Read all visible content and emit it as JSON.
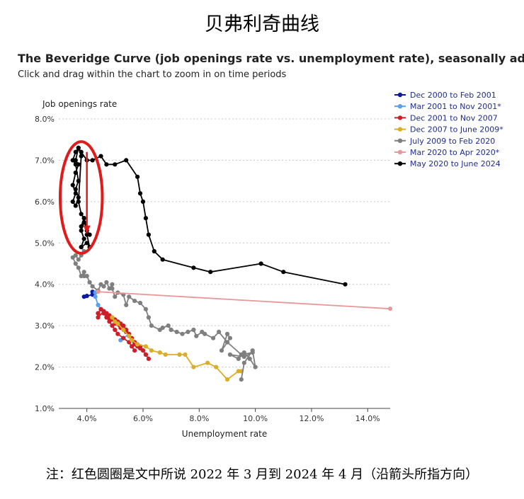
{
  "doc_title": "贝弗利奇曲线",
  "footnote": "注：红色圆圈是文中所说 2022 年 3 月到 2024 年 4 月（沿箭头所指方向）",
  "chart_data": {
    "type": "line",
    "title": "The Beveridge Curve (job openings rate vs. unemployment rate), seasonally adjusted",
    "subtitle": "Click and drag within the chart to zoom in on time periods",
    "xlabel": "Unemployment rate",
    "ylabel": "Job openings rate",
    "xlim": [
      3.0,
      14.8
    ],
    "ylim": [
      1.0,
      8.0
    ],
    "x_ticks": [
      "4.0%",
      "6.0%",
      "8.0%",
      "10.0%",
      "12.0%",
      "14.0%"
    ],
    "x_tick_values": [
      4,
      6,
      8,
      10,
      12,
      14
    ],
    "y_ticks": [
      "1.0%",
      "2.0%",
      "3.0%",
      "4.0%",
      "5.0%",
      "6.0%",
      "7.0%",
      "8.0%"
    ],
    "y_tick_values": [
      1,
      2,
      3,
      4,
      5,
      6,
      7,
      8
    ],
    "grid": "horizontal dotted",
    "legend_position": "top-right",
    "series": [
      {
        "name": "Dec 2000 to Feb 2001",
        "color": "#0a1a9a",
        "x": [
          3.9,
          4.0,
          4.2,
          4.2
        ],
        "y": [
          3.7,
          3.72,
          3.75,
          3.82
        ]
      },
      {
        "name": "Mar 2001 to Nov 2001*",
        "color": "#5aa0e8",
        "x": [
          4.3,
          4.3,
          4.4,
          4.5,
          4.6,
          4.8,
          5.0,
          5.3,
          5.4,
          5.5,
          5.3,
          5.2
        ],
        "y": [
          3.8,
          3.7,
          3.5,
          3.4,
          3.3,
          3.2,
          3.1,
          3.0,
          2.85,
          2.8,
          2.7,
          2.65
        ]
      },
      {
        "name": "Dec 2001 to Nov 2007",
        "color": "#cc1f2a",
        "x": [
          5.7,
          5.6,
          5.5,
          5.3,
          5.1,
          5.0,
          4.9,
          4.8,
          4.7,
          4.6,
          4.5,
          4.4,
          4.4,
          4.6,
          4.7,
          4.8,
          4.9,
          5.0,
          5.2,
          5.4,
          5.5,
          5.6,
          5.7,
          5.8,
          5.9,
          6.0,
          6.1,
          6.2,
          6.1,
          6.0,
          5.9,
          5.8,
          5.7,
          5.6,
          5.5,
          5.4,
          5.3,
          5.2,
          5.1,
          5.0,
          4.9,
          4.8,
          4.7,
          4.6,
          4.5,
          4.4
        ],
        "y": [
          2.4,
          2.5,
          2.6,
          2.7,
          2.8,
          2.9,
          3.0,
          3.1,
          3.2,
          3.3,
          3.4,
          3.3,
          3.2,
          3.35,
          3.3,
          3.2,
          3.15,
          3.05,
          2.95,
          2.85,
          2.75,
          2.65,
          2.55,
          2.5,
          2.45,
          2.4,
          2.3,
          2.2,
          2.3,
          2.4,
          2.5,
          2.55,
          2.6,
          2.7,
          2.8,
          2.9,
          3.0,
          3.05,
          3.1,
          3.15,
          3.2,
          3.25,
          3.3,
          3.35,
          3.4,
          3.3
        ]
      },
      {
        "name": "Dec 2007 to June 2009*",
        "color": "#dcae27",
        "x": [
          4.9,
          5.0,
          5.1,
          5.3,
          5.5,
          5.6,
          5.8,
          6.1,
          6.3,
          6.6,
          6.8,
          7.3,
          7.5,
          7.8,
          8.3,
          8.6,
          9.0,
          9.4,
          9.5
        ],
        "y": [
          3.2,
          3.1,
          3.05,
          2.9,
          2.75,
          2.65,
          2.55,
          2.5,
          2.4,
          2.35,
          2.3,
          2.3,
          2.3,
          2.0,
          2.1,
          2.0,
          1.7,
          1.9,
          1.9
        ]
      },
      {
        "name": "July 2009 to Feb 2020",
        "color": "#7f7f7f",
        "x": [
          9.5,
          9.6,
          9.9,
          10.0,
          9.8,
          9.6,
          9.4,
          9.1,
          9.6,
          9.9,
          9.5,
          9.0,
          8.8,
          9.0,
          9.1,
          9.0,
          8.7,
          8.5,
          8.2,
          8.1,
          7.9,
          7.8,
          7.6,
          7.4,
          7.2,
          7.0,
          6.9,
          6.7,
          6.6,
          6.3,
          6.2,
          6.1,
          5.9,
          5.7,
          5.5,
          5.4,
          5.3,
          5.1,
          5.0,
          4.9,
          4.9,
          4.8,
          4.7,
          4.6,
          4.5,
          4.4,
          4.2,
          4.1,
          4.0,
          3.9,
          3.9,
          3.8,
          3.7,
          3.6,
          3.5,
          3.6,
          3.7,
          3.8,
          3.9,
          3.8
        ],
        "y": [
          1.7,
          2.1,
          2.4,
          2.0,
          2.2,
          2.35,
          2.2,
          2.3,
          2.25,
          2.35,
          2.3,
          2.6,
          2.4,
          2.8,
          2.7,
          2.6,
          2.85,
          2.7,
          2.8,
          2.85,
          2.75,
          2.9,
          2.85,
          2.8,
          2.85,
          2.9,
          3.0,
          2.95,
          2.9,
          3.0,
          3.2,
          3.4,
          3.55,
          3.6,
          3.7,
          3.5,
          3.75,
          3.8,
          3.7,
          3.9,
          4.0,
          3.9,
          4.05,
          3.95,
          4.0,
          3.85,
          3.95,
          4.05,
          4.2,
          4.2,
          4.3,
          4.2,
          4.4,
          4.5,
          4.65,
          4.7,
          4.6,
          4.7,
          4.8,
          4.9
        ]
      },
      {
        "name": "Mar 2020 to Apr 2020*",
        "color": "#e89898",
        "x": [
          4.4,
          14.8
        ],
        "y": [
          3.82,
          3.41
        ]
      },
      {
        "name": "May 2020 to June 2024",
        "color": "#000000",
        "x": [
          13.2,
          11.0,
          10.2,
          8.4,
          7.8,
          6.7,
          6.4,
          6.2,
          6.1,
          6.0,
          5.9,
          5.8,
          5.4,
          5.0,
          4.7,
          4.5,
          4.2,
          4.0,
          3.8,
          3.7,
          3.6,
          3.7,
          3.6,
          3.5,
          3.6,
          3.5,
          3.6,
          3.7,
          3.6,
          3.7,
          3.6,
          3.5,
          3.6,
          3.7,
          3.8,
          3.7,
          3.8,
          3.9,
          3.8,
          3.9,
          3.8,
          3.9,
          3.8,
          4.0,
          4.1,
          4.0,
          3.9,
          4.0,
          4.1
        ],
        "y": [
          4.0,
          4.3,
          4.5,
          4.3,
          4.4,
          4.6,
          4.8,
          5.2,
          5.6,
          6.0,
          6.2,
          6.6,
          7.0,
          6.9,
          6.9,
          7.1,
          7.0,
          7.0,
          7.2,
          7.3,
          7.0,
          6.9,
          6.7,
          6.4,
          6.2,
          6.0,
          5.9,
          6.1,
          6.3,
          6.5,
          6.9,
          7.0,
          7.2,
          7.3,
          7.1,
          6.0,
          5.7,
          5.6,
          5.4,
          5.5,
          5.3,
          5.1,
          4.9,
          5.0,
          4.9,
          5.2,
          5.6,
          5.3,
          5.2
        ]
      }
    ],
    "annotations": [
      {
        "shape": "ellipse",
        "color": "#e01b1b",
        "center": [
          3.8,
          6.1
        ],
        "radius_x": 0.75,
        "radius_y": 1.35
      },
      {
        "shape": "arrow",
        "color": "#e01b1b",
        "from": [
          4.0,
          7.2
        ],
        "to": [
          4.0,
          5.25
        ]
      }
    ]
  }
}
